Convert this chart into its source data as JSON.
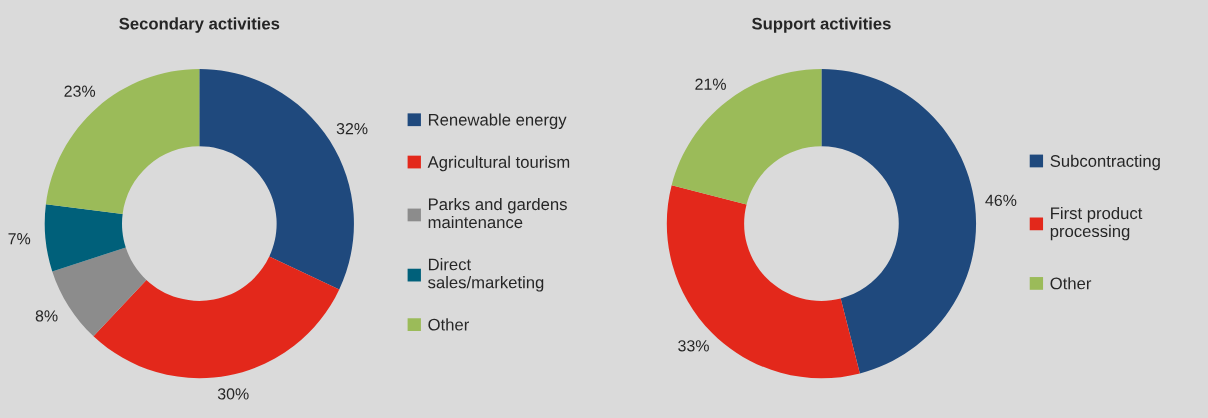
{
  "chart_data": [
    {
      "type": "donut",
      "title": "Secondary activities",
      "categories": [
        "Renewable energy",
        "Agricultural tourism",
        "Parks and gardens\nmaintenance",
        "Direct\nsales/marketing",
        "Other"
      ],
      "values": [
        32,
        30,
        8,
        7,
        23
      ],
      "colors": [
        "#1f497d",
        "#e3281b",
        "#8c8c8c",
        "#00607a",
        "#9bbb59"
      ],
      "value_labels": [
        "32%",
        "30%",
        "8%",
        "7%",
        "23%"
      ],
      "legend": "right"
    },
    {
      "type": "donut",
      "title": "Support activities",
      "categories": [
        "Subcontracting",
        "First product\nprocessing",
        "Other"
      ],
      "values": [
        46,
        33,
        21
      ],
      "colors": [
        "#1f497d",
        "#e3281b",
        "#9bbb59"
      ],
      "value_labels": [
        "46%",
        "33%",
        "21%"
      ],
      "legend": "right"
    }
  ]
}
